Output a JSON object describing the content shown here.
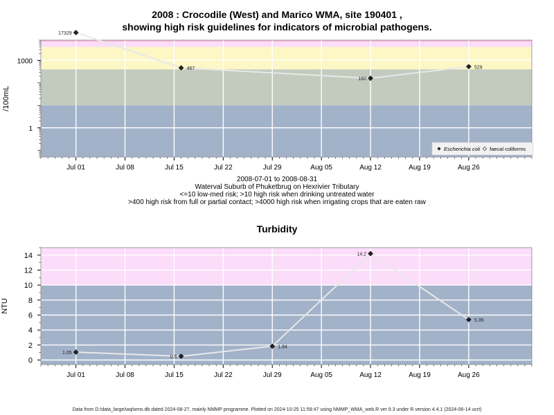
{
  "title": {
    "line1": "2008 : Crocodile (West) and Marico WMA, site 190401 ,",
    "line2": "showing high risk guidelines for indicators of microbial pathogens."
  },
  "subtitle": {
    "line1": "2008-07-01 to 2008-08-31",
    "line2": "Waterval Suburb of Phuketbrug on Hexrivier Tributary",
    "line3": "<=10 low-med risk; >10 high risk when drinking untreated water",
    "line4": ">400 high risk from full or partial contact; >4000 high risk when irrigating crops that are eaten raw"
  },
  "footer": "Data from D:/data_large/wq/wms.db dated 2024-08-27, mainly NMMP programme. Plotted on 2024-10-25 11:59:47 using NMMP_WMA_web.R ver 9.3 under R version 4.4.1 (2024-06-14 ucrt)",
  "colors": {
    "grid": "#ffffff",
    "line": "#e8e8e8",
    "band_blue": "#a2b2c9",
    "band_green": "#c3cbbf",
    "band_yellow": "#fcf7c5",
    "band_pink": "#fbdcf9",
    "band_red": "#f6b6d0"
  },
  "chart_data": [
    {
      "type": "line",
      "title": "",
      "xlabel": "",
      "ylabel": "/100mL",
      "yscale": "log",
      "ylim": [
        0.05,
        8000
      ],
      "xlim": [
        "2008-06-26",
        "2008-09-04"
      ],
      "x_ticks": [
        "Jul 01",
        "Jul 08",
        "Jul 15",
        "Jul 22",
        "Jul 29",
        "Aug 05",
        "Aug 12",
        "Aug 19",
        "Aug 26"
      ],
      "y_ticks": [
        "1",
        "1000"
      ],
      "grid": true,
      "legend": {
        "position": "bottom-right",
        "entries": [
          "Escherichia coli",
          "faecal coliforms"
        ]
      },
      "bands": [
        {
          "from": 0.05,
          "to": 10,
          "color": "#a2b2c9"
        },
        {
          "from": 10,
          "to": 400,
          "color": "#c3cbbf"
        },
        {
          "from": 400,
          "to": 4000,
          "color": "#fcf7c5"
        },
        {
          "from": 4000,
          "to": 8000,
          "color": "#fbdcf9"
        }
      ],
      "series": [
        {
          "name": "Escherichia coli",
          "x": [
            "2008-07-01",
            "2008-07-16",
            "2008-08-12",
            "2008-08-26"
          ],
          "values": [
            17329,
            467,
            160,
            529
          ],
          "labels": [
            "17329",
            "467",
            "160",
            "529"
          ]
        }
      ]
    },
    {
      "type": "line",
      "title": "Turbidity",
      "xlabel": "",
      "ylabel": "NTU",
      "yscale": "linear",
      "ylim": [
        -0.6,
        15.0
      ],
      "xlim": [
        "2008-06-26",
        "2008-09-04"
      ],
      "x_ticks": [
        "Jul 01",
        "Jul 08",
        "Jul 15",
        "Jul 22",
        "Jul 29",
        "Aug 05",
        "Aug 12",
        "Aug 19",
        "Aug 26"
      ],
      "y_ticks": [
        "0",
        "2",
        "4",
        "6",
        "8",
        "10",
        "12",
        "14"
      ],
      "grid": true,
      "bands": [
        {
          "from": -0.6,
          "to": 10,
          "color": "#a2b2c9"
        },
        {
          "from": 10,
          "to": 15.0,
          "color": "#fbdcf9"
        }
      ],
      "series": [
        {
          "name": "",
          "x": [
            "2008-07-01",
            "2008-07-16",
            "2008-07-29",
            "2008-08-12",
            "2008-08-26"
          ],
          "values": [
            1.05,
            0.5,
            1.84,
            14.2,
            5.39
          ],
          "labels": [
            "1.05",
            "0.5",
            "1.84",
            "14.2",
            "5.39"
          ]
        }
      ]
    }
  ]
}
